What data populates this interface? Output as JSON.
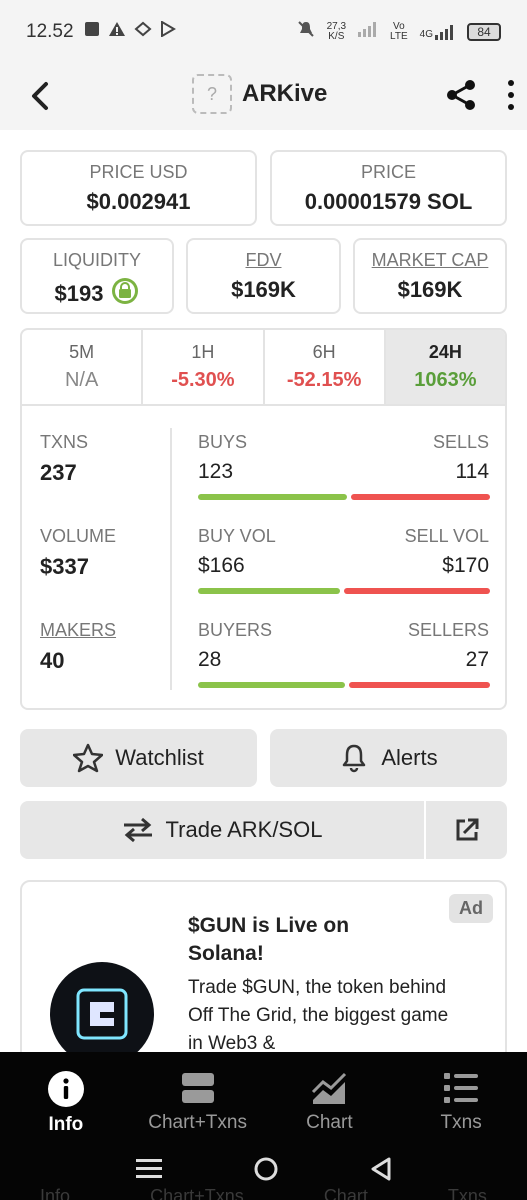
{
  "status_bar": {
    "time": "12.52",
    "net_speed_top": "27,3",
    "net_speed_unit": "K/S",
    "vo_lte_top": "Vo",
    "vo_lte_bottom": "LTE",
    "network": "4G",
    "battery": "84"
  },
  "header": {
    "token_placeholder": "?",
    "title": "ARKive"
  },
  "price_usd": {
    "label": "PRICE USD",
    "value": "$0.002941"
  },
  "price": {
    "label": "PRICE",
    "value": "0.00001579 SOL"
  },
  "liquidity": {
    "label": "LIQUIDITY",
    "value": "$193"
  },
  "fdv": {
    "label": "FDV",
    "value": "$169K"
  },
  "market_cap": {
    "label": "MARKET CAP",
    "value": "$169K"
  },
  "periods": [
    {
      "label": "5M",
      "value": "N/A"
    },
    {
      "label": "1H",
      "value": "-5.30%"
    },
    {
      "label": "6H",
      "value": "-52.15%"
    },
    {
      "label": "24H",
      "value": "1063%"
    }
  ],
  "stats": {
    "txns": {
      "label": "TXNS",
      "value": "237",
      "left_label": "BUYS",
      "left_value": "123",
      "right_label": "SELLS",
      "right_value": "114",
      "left_fraction": 0.519
    },
    "volume": {
      "label": "VOLUME",
      "value": "$337",
      "left_label": "BUY VOL",
      "left_value": "$166",
      "right_label": "SELL VOL",
      "right_value": "$170",
      "left_fraction": 0.494
    },
    "makers": {
      "label": "MAKERS",
      "value": "40",
      "left_label": "BUYERS",
      "left_value": "28",
      "right_label": "SELLERS",
      "right_value": "27",
      "left_fraction": 0.509
    }
  },
  "buttons": {
    "watchlist": "Watchlist",
    "alerts": "Alerts",
    "trade": "Trade ARK/SOL"
  },
  "ad": {
    "badge": "Ad",
    "title": "$GUN is Live on Solana!",
    "body": "Trade $GUN, the token behind Off The Grid, the biggest game in Web3 &"
  },
  "bottom_nav": [
    {
      "label": "Info",
      "icon": "info-icon"
    },
    {
      "label": "Chart+Txns",
      "icon": "chart-txns-icon"
    },
    {
      "label": "Chart",
      "icon": "chart-icon"
    },
    {
      "label": "Txns",
      "icon": "list-icon"
    }
  ],
  "ghost_nav": [
    "Info",
    "Chart+Txns",
    "Chart",
    "Txns"
  ],
  "colors": {
    "buy": "#8bc34a",
    "sell": "#ef5350",
    "negative": "#e05050",
    "positive": "#5a9e3a"
  }
}
